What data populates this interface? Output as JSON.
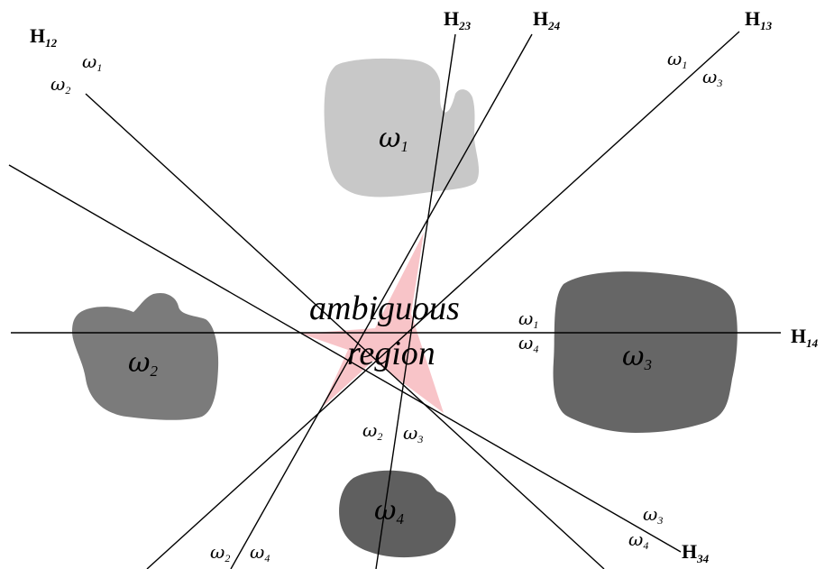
{
  "colors": {
    "class1_blob": "#c8c8c8",
    "class2_blob": "#7b7b7b",
    "class3_blob": "#666666",
    "class4_blob": "#5f5f5f",
    "ambiguous_region": "#f8c4c8",
    "line": "#000000"
  },
  "hyperplanes": {
    "h12": {
      "letter": "H",
      "sub": "12"
    },
    "h23": {
      "letter": "H",
      "sub": "23"
    },
    "h24": {
      "letter": "H",
      "sub": "24"
    },
    "h13": {
      "letter": "H",
      "sub": "13"
    },
    "h14": {
      "letter": "H",
      "sub": "14"
    },
    "h34": {
      "letter": "H",
      "sub": "34"
    }
  },
  "side_labels": {
    "h12_a": {
      "sym": "ω",
      "sub": "1"
    },
    "h12_b": {
      "sym": "ω",
      "sub": "2"
    },
    "h13_a": {
      "sym": "ω",
      "sub": "1"
    },
    "h13_b": {
      "sym": "ω",
      "sub": "3"
    },
    "h14_a": {
      "sym": "ω",
      "sub": "1"
    },
    "h14_b": {
      "sym": "ω",
      "sub": "4"
    },
    "h23_a": {
      "sym": "ω",
      "sub": "2"
    },
    "h23_b": {
      "sym": "ω",
      "sub": "3"
    },
    "h24_a": {
      "sym": "ω",
      "sub": "2"
    },
    "h24_b": {
      "sym": "ω",
      "sub": "4"
    },
    "h34_a": {
      "sym": "ω",
      "sub": "3"
    },
    "h34_b": {
      "sym": "ω",
      "sub": "4"
    }
  },
  "classes": {
    "c1": {
      "sym": "ω",
      "sub": "1"
    },
    "c2": {
      "sym": "ω",
      "sub": "2"
    },
    "c3": {
      "sym": "ω",
      "sub": "3"
    },
    "c4": {
      "sym": "ω",
      "sub": "4"
    }
  },
  "ambiguous": {
    "line1": "ambiguous",
    "line2": "region"
  }
}
